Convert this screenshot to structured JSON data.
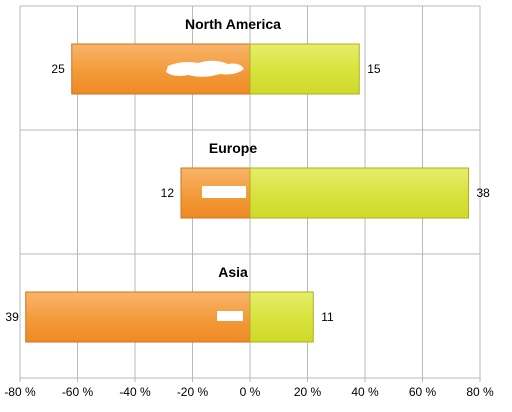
{
  "chart_data": {
    "type": "bar",
    "orientation": "horizontal",
    "diverging": true,
    "categories": [
      "North America",
      "Europe",
      "Asia"
    ],
    "series": [
      {
        "side": "left",
        "values": [
          -62,
          -24,
          -78
        ],
        "labels": [
          "25",
          "12",
          "39"
        ],
        "color": "#f39a3a"
      },
      {
        "side": "right",
        "values": [
          38,
          76,
          22
        ],
        "labels": [
          "15",
          "38",
          "11"
        ],
        "color": "#d8e23c"
      }
    ],
    "xlim": [
      -80,
      80
    ],
    "x_ticks": [
      -80,
      -60,
      -40,
      -20,
      0,
      20,
      40,
      60,
      80
    ],
    "x_tick_labels": [
      "-80 %",
      "-60 %",
      "-40 %",
      "-20 %",
      "0 %",
      "20 %",
      "40 %",
      "60 %",
      "80 %"
    ],
    "grid": true,
    "legend": "none",
    "colors": {
      "gridline": "#b8b8b8",
      "left_border": "#c8741f",
      "right_border": "#aab21c"
    }
  }
}
